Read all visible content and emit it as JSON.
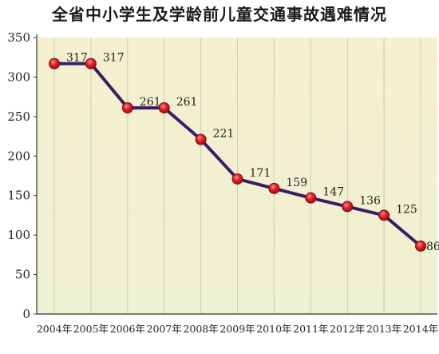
{
  "chart_data": {
    "type": "line",
    "title": "全省中小学生及学龄前儿童交通事故遇难情况",
    "categories": [
      "2004年",
      "2005年",
      "2006年",
      "2007年",
      "2008年",
      "2009年",
      "2010年",
      "2011年",
      "2012年",
      "2013年",
      "2014年"
    ],
    "series": [
      {
        "values": [
          317,
          317,
          261,
          261,
          221,
          171,
          159,
          147,
          136,
          125,
          86
        ]
      }
    ],
    "ylim": [
      0,
      350
    ],
    "yticks": [
      0,
      50,
      100,
      150,
      200,
      250,
      300,
      350
    ],
    "grid": "vertical",
    "colors": {
      "plot_background_top": "#f5f0cf",
      "plot_background_bottom": "#eef1d2",
      "line": "#3a1e63",
      "marker_fill": "#e0202a",
      "marker_stroke": "#7a0a12",
      "grid": "#c9cfb5"
    }
  }
}
